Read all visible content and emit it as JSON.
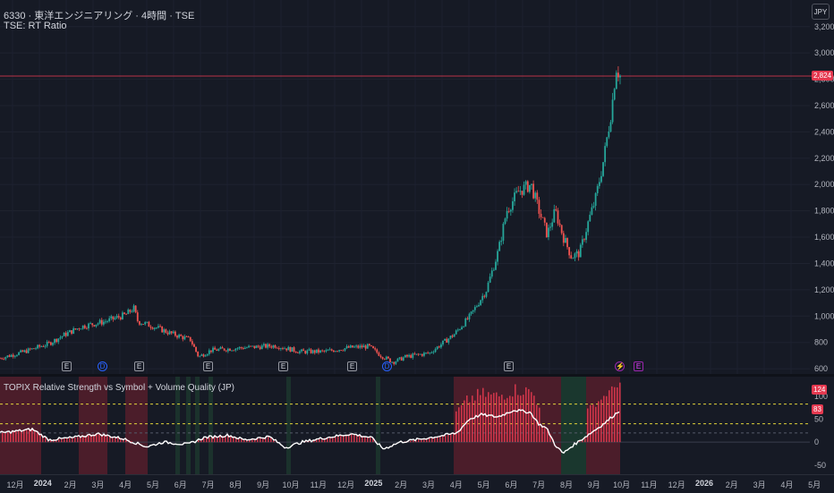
{
  "header": {
    "symbol_line": "6330 · 東洋エンジニアリング · 4時間 · TSE",
    "ratio_line": "TSE: RT Ratio"
  },
  "currency_button": "JPY",
  "price_axis": {
    "ticks": [
      "3,200",
      "3,000",
      "2,800",
      "2,600",
      "2,400",
      "2,200",
      "2,000",
      "1,800",
      "1,600",
      "1,400",
      "1,200",
      "1,000",
      "800",
      "600"
    ],
    "last_price": "2,824"
  },
  "price_series": {
    "description_values": [
      [
        0,
        680
      ],
      [
        0.03,
        730
      ],
      [
        0.06,
        790
      ],
      [
        0.08,
        860
      ],
      [
        0.1,
        920
      ],
      [
        0.13,
        960
      ],
      [
        0.155,
        1010
      ],
      [
        0.165,
        1060
      ],
      [
        0.17,
        960
      ],
      [
        0.19,
        920
      ],
      [
        0.21,
        870
      ],
      [
        0.235,
        820
      ],
      [
        0.245,
        690
      ],
      [
        0.26,
        740
      ],
      [
        0.3,
        760
      ],
      [
        0.34,
        775
      ],
      [
        0.37,
        730
      ],
      [
        0.4,
        730
      ],
      [
        0.43,
        760
      ],
      [
        0.455,
        770
      ],
      [
        0.47,
        700
      ],
      [
        0.485,
        650
      ],
      [
        0.5,
        690
      ],
      [
        0.53,
        720
      ],
      [
        0.545,
        790
      ],
      [
        0.56,
        860
      ],
      [
        0.58,
        1000
      ],
      [
        0.6,
        1200
      ],
      [
        0.615,
        1500
      ],
      [
        0.625,
        1800
      ],
      [
        0.64,
        1950
      ],
      [
        0.655,
        2000
      ],
      [
        0.665,
        1800
      ],
      [
        0.675,
        1620
      ],
      [
        0.685,
        1800
      ],
      [
        0.695,
        1600
      ],
      [
        0.705,
        1450
      ],
      [
        0.715,
        1480
      ],
      [
        0.725,
        1700
      ],
      [
        0.735,
        1900
      ],
      [
        0.745,
        2200
      ],
      [
        0.755,
        2600
      ],
      [
        0.76,
        2900
      ],
      [
        0.765,
        2824
      ]
    ],
    "ylim": [
      560,
      3280
    ]
  },
  "events": [
    {
      "label": "E",
      "type": "e"
    },
    {
      "label": "D",
      "type": "d"
    },
    {
      "label": "E",
      "type": "e"
    },
    {
      "label": "E",
      "type": "e"
    },
    {
      "label": "E",
      "type": "e"
    },
    {
      "label": "E",
      "type": "e"
    },
    {
      "label": "D",
      "type": "d"
    },
    {
      "label": "E",
      "type": "e"
    },
    {
      "label": "⚡",
      "type": "s"
    },
    {
      "label": "E",
      "type": "ep"
    }
  ],
  "indicator": {
    "title": "TOPIX Relative Strength vs Symbol + Volume Quality (JP)",
    "axis_ticks": [
      "100",
      "50",
      "0",
      "-50"
    ],
    "tags": [
      "124",
      "83"
    ],
    "ylim": [
      -70,
      135
    ],
    "line_values": [
      [
        0,
        20
      ],
      [
        0.04,
        28
      ],
      [
        0.06,
        5
      ],
      [
        0.09,
        10
      ],
      [
        0.12,
        18
      ],
      [
        0.15,
        8
      ],
      [
        0.18,
        -10
      ],
      [
        0.2,
        0
      ],
      [
        0.23,
        -5
      ],
      [
        0.25,
        10
      ],
      [
        0.28,
        15
      ],
      [
        0.3,
        5
      ],
      [
        0.33,
        12
      ],
      [
        0.35,
        -12
      ],
      [
        0.37,
        0
      ],
      [
        0.4,
        10
      ],
      [
        0.43,
        18
      ],
      [
        0.455,
        10
      ],
      [
        0.47,
        -15
      ],
      [
        0.49,
        0
      ],
      [
        0.52,
        8
      ],
      [
        0.545,
        15
      ],
      [
        0.56,
        20
      ],
      [
        0.575,
        50
      ],
      [
        0.59,
        60
      ],
      [
        0.61,
        55
      ],
      [
        0.63,
        70
      ],
      [
        0.65,
        65
      ],
      [
        0.66,
        40
      ],
      [
        0.67,
        30
      ],
      [
        0.68,
        -5
      ],
      [
        0.69,
        -25
      ],
      [
        0.7,
        -10
      ],
      [
        0.72,
        15
      ],
      [
        0.74,
        40
      ],
      [
        0.76,
        70
      ]
    ]
  },
  "time_axis": {
    "labels": [
      "12月",
      "2024",
      "2月",
      "3月",
      "4月",
      "5月",
      "6月",
      "7月",
      "8月",
      "9月",
      "10月",
      "11月",
      "12月",
      "2025",
      "2月",
      "3月",
      "4月",
      "5月",
      "6月",
      "7月",
      "8月",
      "9月",
      "10月",
      "11月",
      "12月",
      "2026",
      "2月",
      "3月",
      "4月",
      "5月"
    ]
  },
  "colors": {
    "up": "#26a69a",
    "down": "#ef5350",
    "price_line": "#e53950",
    "rs_line": "#ffffff",
    "dash_yellow": "#e0d23a"
  }
}
